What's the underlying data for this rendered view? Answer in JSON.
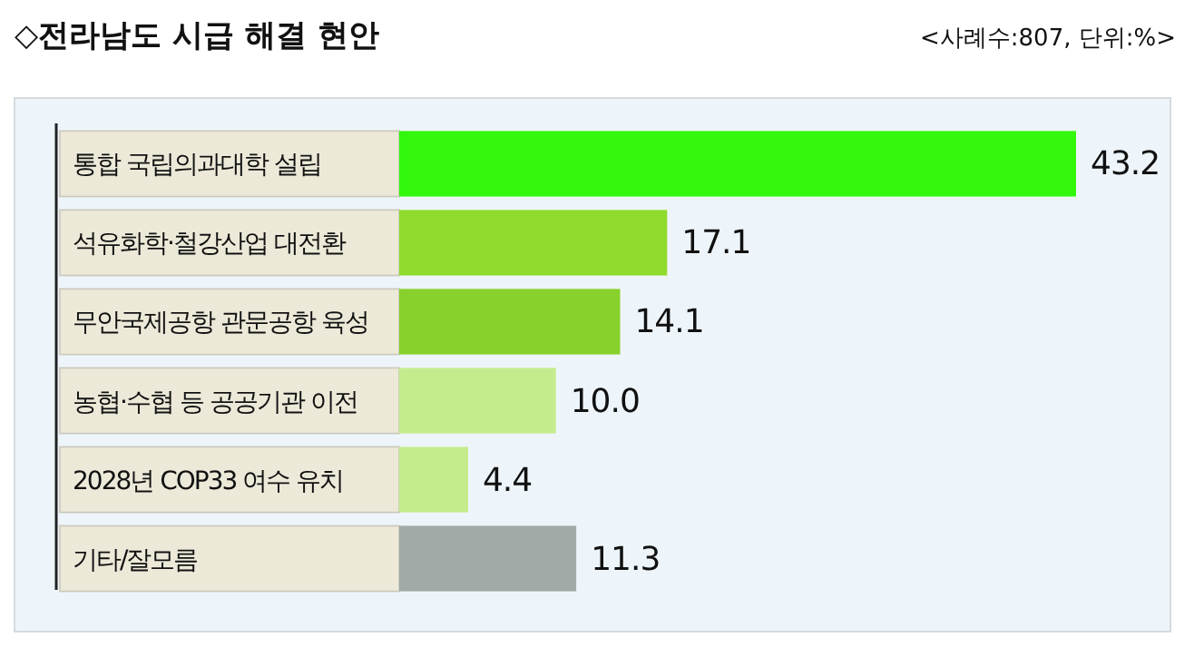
{
  "chart_data": {
    "type": "bar",
    "orientation": "horizontal",
    "title": "◇전라남도 시급 해결 현안",
    "subtitle": "<사례수:807, 단위:%>",
    "categories": [
      "통합 국립의과대학 설립",
      "석유화학·철강산업 대전환",
      "무안국제공항 관문공항 육성",
      "농협·수협 등 공공기관 이전",
      "2028년 COP33 여수 유치",
      "기타/잘모름"
    ],
    "values": [
      43.2,
      17.1,
      14.1,
      10.0,
      4.4,
      11.3
    ],
    "colors": [
      "#33f70c",
      "#8fdb2e",
      "#88d02b",
      "#c4ec8c",
      "#c4ec8c",
      "#a2aaa8"
    ],
    "value_labels": [
      "43.2",
      "17.1",
      "14.1",
      "10.0",
      "4.4",
      "11.3"
    ]
  }
}
